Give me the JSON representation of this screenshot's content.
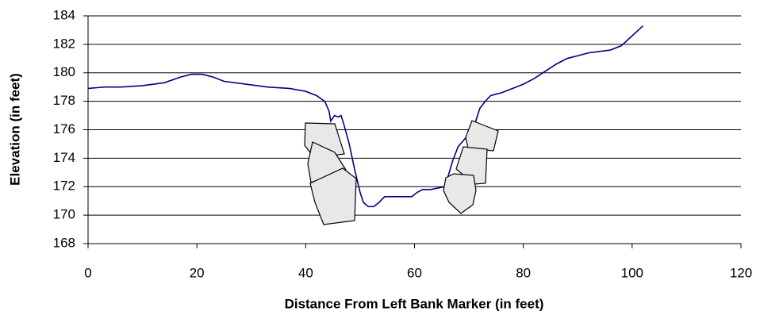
{
  "chart_data": {
    "type": "line",
    "x_label": "Distance From Left Bank Marker (in feet)",
    "y_label": "Elevation (in feet)",
    "xlim": [
      0,
      120
    ],
    "xticks": [
      0,
      20,
      40,
      60,
      80,
      100,
      120
    ],
    "ylim": [
      168,
      184
    ],
    "yticks": [
      168,
      170,
      172,
      174,
      176,
      178,
      180,
      182,
      184
    ],
    "grid": true,
    "series": [
      {
        "color": "#000080",
        "x": [
          0,
          3,
          6,
          10,
          14,
          17,
          19,
          21,
          23,
          25,
          29,
          33,
          37,
          40,
          42,
          43.5,
          44.3,
          44.6,
          45.3,
          46,
          46.5,
          47,
          48,
          49,
          50,
          50.6,
          51.5,
          52.5,
          53.5,
          54.5,
          56,
          58,
          59.5,
          60.5,
          61.5,
          63,
          65.5,
          66,
          67,
          68,
          70,
          71,
          72,
          73,
          74,
          76,
          78,
          80,
          82,
          84,
          86,
          88,
          90,
          92,
          94,
          96,
          98,
          100,
          102
        ],
        "values": [
          178.9,
          179,
          179,
          179.1,
          179.3,
          179.7,
          179.9,
          179.9,
          179.7,
          179.4,
          179.2,
          179,
          178.9,
          178.7,
          178.4,
          178,
          177.3,
          176.6,
          177,
          176.9,
          177,
          176.4,
          175,
          173.2,
          171.6,
          170.9,
          170.6,
          170.6,
          170.9,
          171.3,
          171.3,
          171.3,
          171.3,
          171.6,
          171.8,
          171.8,
          172,
          172.5,
          173.8,
          174.8,
          175.7,
          176.3,
          177.5,
          178,
          178.4,
          178.6,
          178.9,
          179.2,
          179.6,
          180.1,
          180.6,
          181,
          181.2,
          181.4,
          181.5,
          181.6,
          181.9,
          182.6,
          183.3
        ]
      }
    ]
  }
}
